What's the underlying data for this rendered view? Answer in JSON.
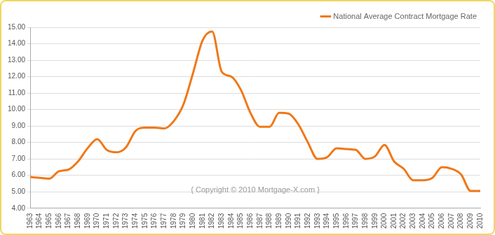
{
  "chart_data": {
    "type": "line",
    "categories": [
      "1963",
      "1964",
      "1965",
      "1966",
      "1967",
      "1968",
      "1969",
      "1970",
      "1971",
      "1972",
      "1973",
      "1974",
      "1975",
      "1976",
      "1977",
      "1978",
      "1979",
      "1980",
      "1981",
      "1982",
      "1983",
      "1984",
      "1985",
      "1986",
      "1987",
      "1988",
      "1989",
      "1990",
      "1991",
      "1992",
      "1993",
      "1994",
      "1995",
      "1996",
      "1997",
      "1998",
      "1999",
      "2000",
      "2001",
      "2002",
      "2003",
      "2004",
      "2005",
      "2006",
      "2007",
      "2008",
      "2009",
      "2010"
    ],
    "series": [
      {
        "name": "National Average Contract Mortgage Rate",
        "color": "#f07818",
        "values": [
          5.9,
          5.85,
          5.8,
          6.25,
          6.35,
          6.85,
          7.65,
          8.2,
          7.55,
          7.4,
          7.7,
          8.7,
          8.9,
          8.9,
          8.85,
          9.3,
          10.3,
          12.2,
          14.2,
          14.75,
          12.3,
          12.0,
          11.2,
          9.8,
          8.95,
          8.95,
          9.8,
          9.75,
          9.1,
          8.0,
          7.0,
          7.1,
          7.65,
          7.6,
          7.55,
          7.0,
          7.15,
          7.85,
          6.85,
          6.4,
          5.7,
          5.7,
          5.85,
          6.5,
          6.4,
          6.05,
          5.05,
          5.05
        ]
      }
    ],
    "ylim": [
      4,
      15
    ],
    "yticks": [
      {
        "value": 4,
        "label": "4.00"
      },
      {
        "value": 5,
        "label": "5.00"
      },
      {
        "value": 6,
        "label": "6.00"
      },
      {
        "value": 7,
        "label": "7.00"
      },
      {
        "value": 8,
        "label": "8.00"
      },
      {
        "value": 9,
        "label": "9.00"
      },
      {
        "value": 10,
        "label": "10.00"
      },
      {
        "value": 11,
        "label": "11.00"
      },
      {
        "value": 12,
        "label": "12.00"
      },
      {
        "value": 13,
        "label": "13.00"
      },
      {
        "value": 14,
        "label": "14.00"
      },
      {
        "value": 15,
        "label": "15.00"
      }
    ],
    "grid": true,
    "legend": "upper right",
    "annotations": [
      "{ Copyright © 2010 Mortgage-X.com }"
    ]
  }
}
